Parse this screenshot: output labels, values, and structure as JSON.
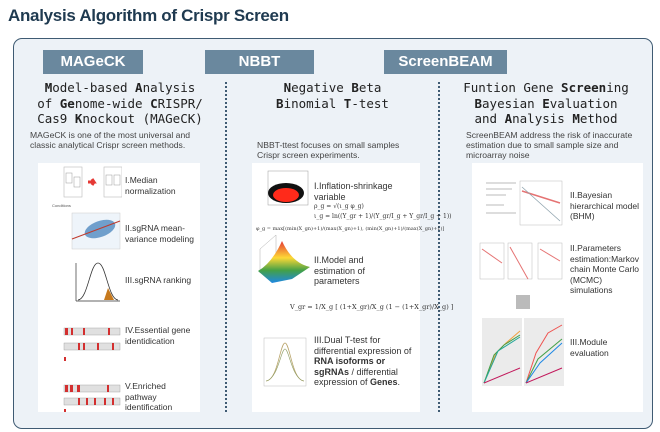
{
  "title": "Analysis Algorithm of Crispr Screen",
  "columns": [
    {
      "header": "MAGeCK",
      "subtitle_lines": [
        [
          [
            "M",
            1
          ],
          [
            "odel-based ",
            0
          ],
          [
            "A",
            1
          ],
          [
            "nalysis",
            0
          ]
        ],
        [
          [
            "of ",
            0
          ],
          [
            "Ge",
            1
          ],
          [
            "nome-wide ",
            0
          ],
          [
            "C",
            1
          ],
          [
            "RISPR/",
            0
          ]
        ],
        [
          [
            "Cas9 ",
            0
          ],
          [
            "K",
            1
          ],
          [
            "nockout (MAGeCK)",
            0
          ]
        ]
      ],
      "description": "MAGeCK is one of the most universal and classic analytical Crispr screen methods.",
      "steps": [
        "I.Median normalization",
        "II.sgRNA mean-variance modeling",
        "III.sgRNA ranking",
        "IV.Essential gene identidication",
        "V.Enriched pathway identification"
      ],
      "figure_text": {
        "read_count": "Read count",
        "conditions": "Conditions",
        "a": "A",
        "b": "B",
        "log2var": "log2(variance)",
        "log2mean": "log2(mean)",
        "probability": "Probability",
        "pvalue": "P value",
        "sgrna_rank": "sgRNA rank",
        "essential": "Essential genes",
        "unessential": "Unessential genes",
        "sgrna_legend": "sgRNAs targeting the same gene",
        "gene_rank": "Gene rank",
        "enriched": "Enriched pathways",
        "unenriched": "Unessential pathways",
        "gene_legend": "genes in the same pathway"
      }
    },
    {
      "header": "NBBT",
      "subtitle_lines": [
        [
          [
            "N",
            1
          ],
          [
            "egative ",
            0
          ],
          [
            "B",
            1
          ],
          [
            "eta",
            0
          ]
        ],
        [
          [
            "B",
            1
          ],
          [
            "inomial ",
            0
          ],
          [
            "T",
            1
          ],
          [
            "-test",
            0
          ]
        ]
      ],
      "description": "NBBT-ttest focuses on small samples Crispr screen experiments.",
      "steps": [
        "I.Inflation-shrinkage variable",
        "II.Model and estimation of parameters"
      ],
      "step3": [
        "III.Dual T-test for differential expression of ",
        [
          "RNA isoforms or sgRNAs",
          1
        ],
        " / differential expression of ",
        [
          "Genes",
          1
        ],
        "."
      ],
      "formulas": [
        "ρ_g = √(ι_g φ_g)",
        "ι_g = ln((Y_gr + 1)/(Y_gr/I_g + Y_gr/I_g + 1))",
        "φ_g = max[(min(X_gn)+1)/(max(X_gn)+1), (min(X_gn)+1)/(max(X_gn)+1)]",
        "V_gr = 1/X_g [ (1+X_gr)/X_g (1 − (1+X_gr)/X_g) ]"
      ]
    },
    {
      "header": "ScreenBEAM",
      "subtitle_lines": [
        [
          [
            "Funtion Gene ",
            0
          ],
          [
            "Screen",
            1
          ],
          [
            "ing",
            0
          ]
        ],
        [
          [
            "B",
            1
          ],
          [
            "ayesian ",
            0
          ],
          [
            "E",
            1
          ],
          [
            "valuation",
            0
          ]
        ],
        [
          [
            "and ",
            0
          ],
          [
            "A",
            1
          ],
          [
            "nalysis ",
            0
          ],
          [
            "M",
            1
          ],
          [
            "ethod",
            0
          ]
        ]
      ],
      "description": "ScreenBEAM address the risk of inaccurate estimation due to small sample size and microarray noise",
      "steps": [
        "II.Bayesian hierarchical model (BHM)",
        "II.Parameters estimation:Markov chain Monte Carlo (MCMC) simulations",
        "III.Module evaluation"
      ]
    }
  ],
  "colors": {
    "header_bg": "#6a889e",
    "panel_bg": "#edf2f7",
    "border": "#3f5b73",
    "title": "#1f3a50",
    "accent_red": "#d32f2f"
  }
}
